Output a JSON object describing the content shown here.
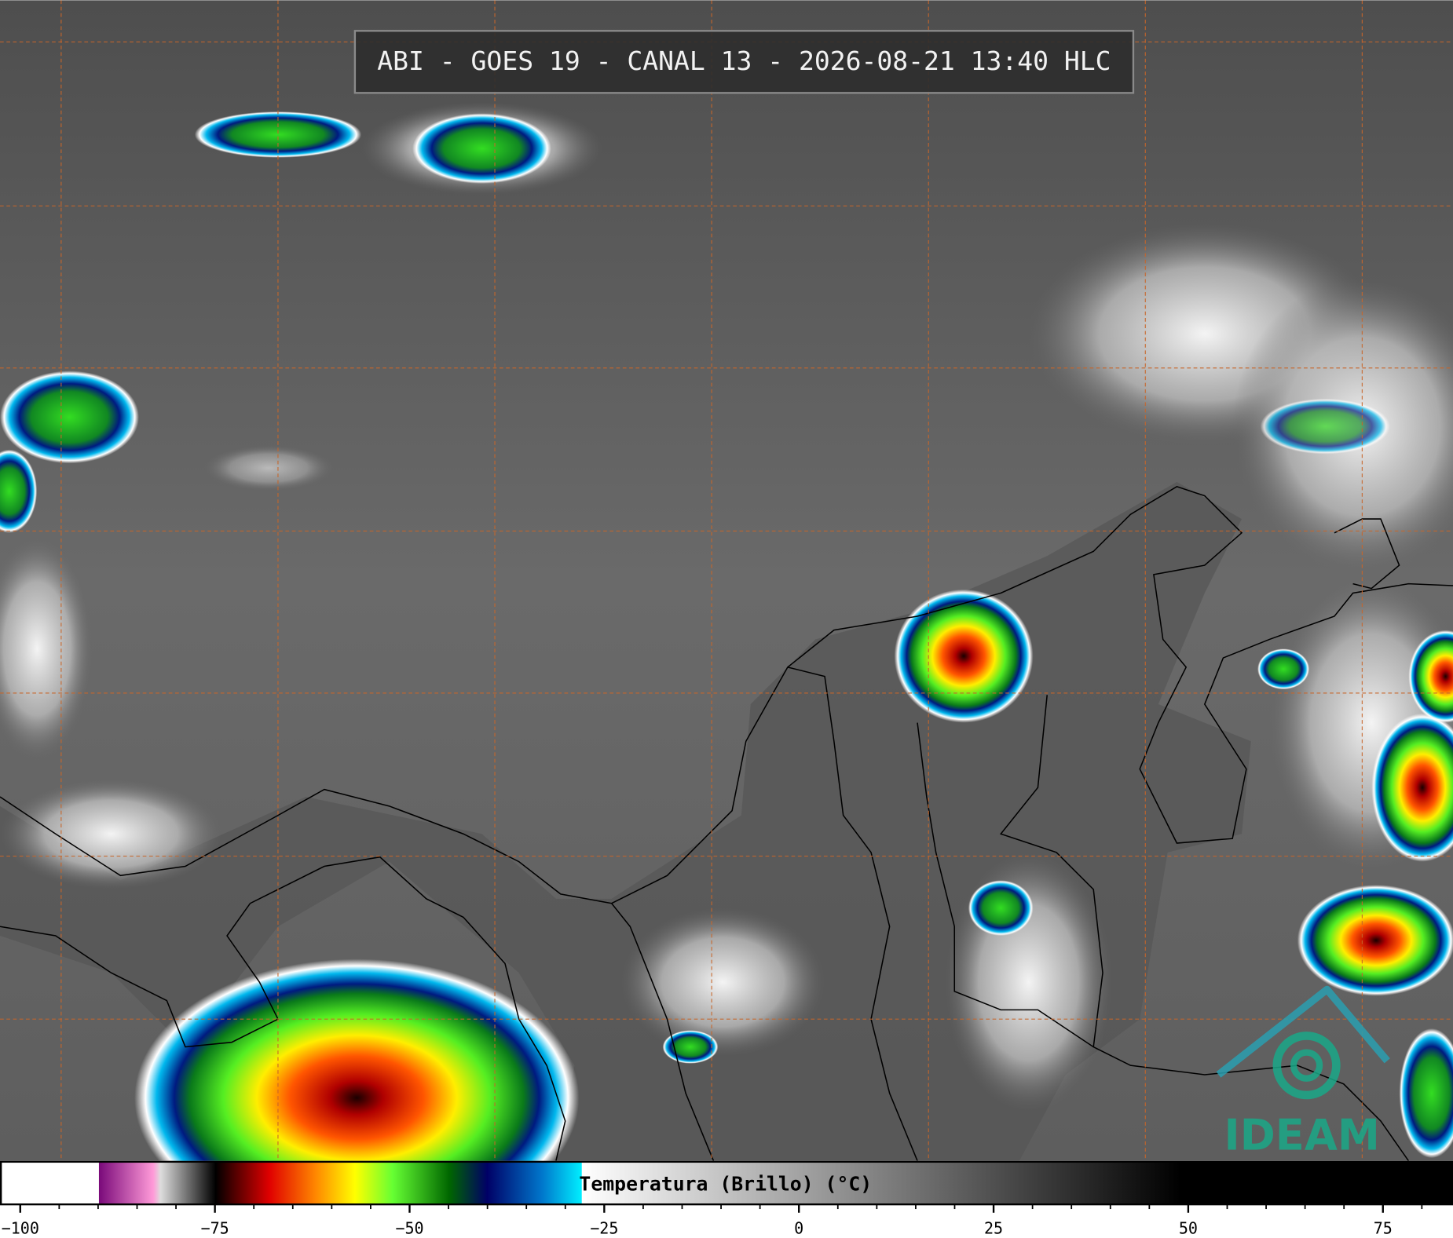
{
  "header": {
    "title": "ABI - GOES 19 - CANAL 13 - 2026-08-21 13:40 HLC"
  },
  "logo": {
    "text": "IDEAM"
  },
  "chart_data": {
    "type": "colorbar",
    "label": "Temperatura (Brillo) (°C)",
    "xlim": [
      -102.6,
      84
    ],
    "xticks": [
      {
        "value": -100,
        "label": "−100"
      },
      {
        "value": -75,
        "label": "−75"
      },
      {
        "value": -50,
        "label": "−50"
      },
      {
        "value": -25,
        "label": "−25"
      },
      0,
      25,
      50,
      75
    ],
    "xminorticks": [
      -100,
      -95,
      -90,
      -85,
      -80,
      -75,
      -70,
      -65,
      -60,
      -55,
      -50,
      -45,
      -40,
      -35,
      -30,
      -25,
      -20,
      -15,
      -10,
      -5,
      0,
      5,
      10,
      15,
      20,
      25,
      30,
      35,
      40,
      45,
      50,
      55,
      60,
      65,
      70,
      75,
      80
    ]
  }
}
